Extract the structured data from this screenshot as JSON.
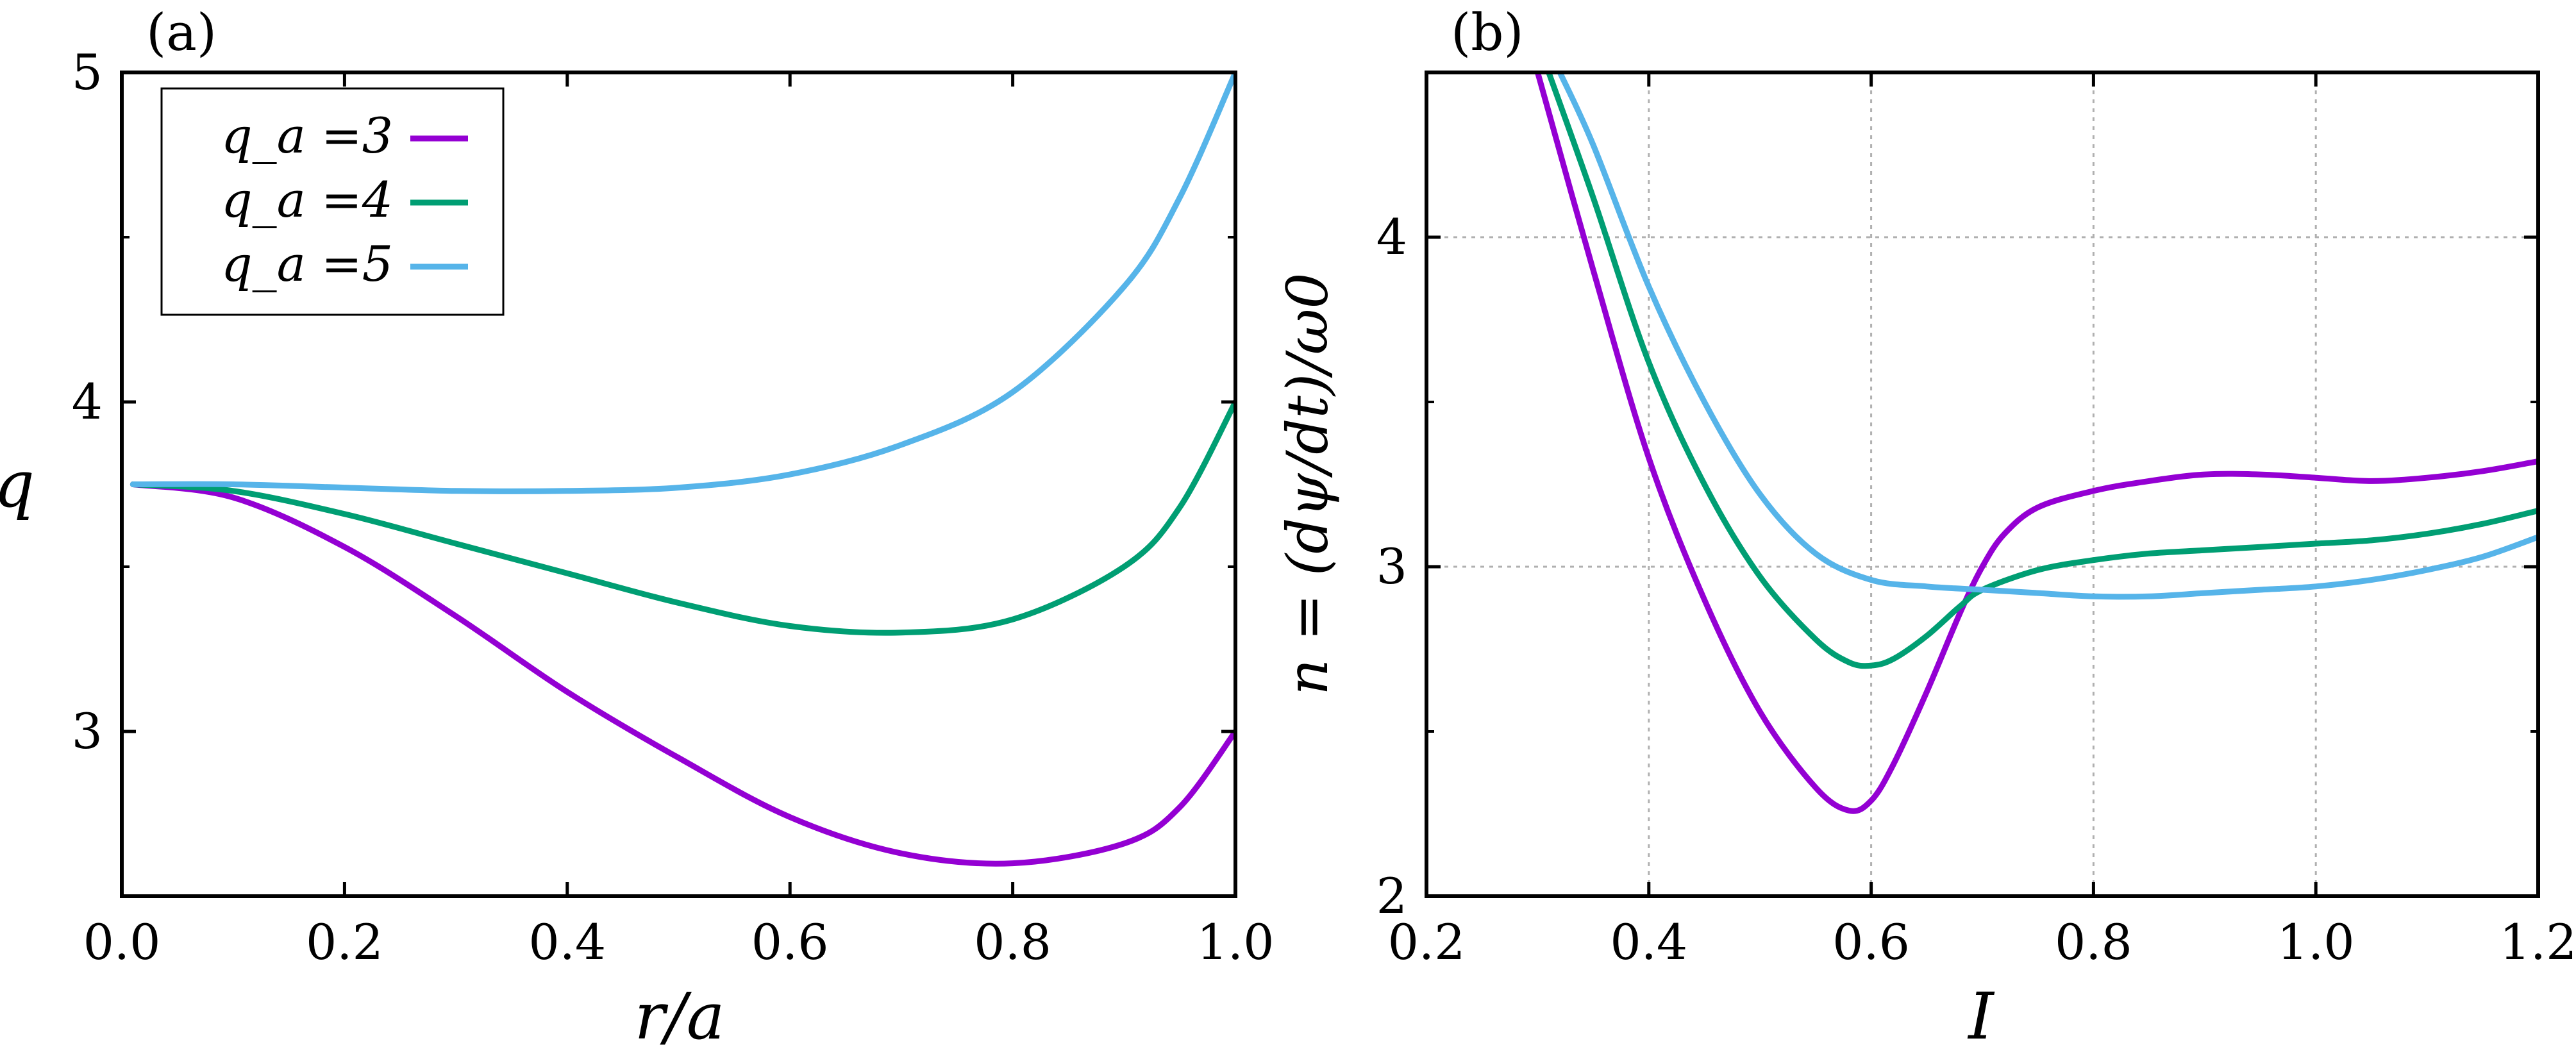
{
  "chart_data": [
    {
      "type": "line",
      "panel_label": "(a)",
      "xlabel": "r/a",
      "ylabel": "q",
      "xlim": [
        0.0,
        1.0
      ],
      "ylim": [
        2.5,
        5.0
      ],
      "grid": false,
      "x_ticks": [
        "0.0",
        "0.2",
        "0.4",
        "0.6",
        "0.8",
        "1.0"
      ],
      "x_tick_values": [
        0.0,
        0.2,
        0.4,
        0.6,
        0.8,
        1.0
      ],
      "y_ticks": [
        "3",
        "4",
        "5"
      ],
      "y_tick_values": [
        3,
        4,
        5
      ],
      "legend": {
        "placement": "top-left",
        "entries": [
          "q_a =3",
          "q_a =4",
          "q_a =5"
        ]
      },
      "series": [
        {
          "name": "q_a =3",
          "color": "#9400D3",
          "x": [
            0.01,
            0.1,
            0.2,
            0.3,
            0.4,
            0.5,
            0.6,
            0.7,
            0.8,
            0.9,
            0.95,
            1.0
          ],
          "y": [
            3.75,
            3.71,
            3.56,
            3.35,
            3.12,
            2.92,
            2.74,
            2.63,
            2.6,
            2.66,
            2.77,
            3.0
          ]
        },
        {
          "name": "q_a =4",
          "color": "#009E73",
          "x": [
            0.01,
            0.1,
            0.2,
            0.3,
            0.4,
            0.5,
            0.6,
            0.7,
            0.8,
            0.9,
            0.95,
            1.0
          ],
          "y": [
            3.75,
            3.73,
            3.66,
            3.57,
            3.48,
            3.39,
            3.32,
            3.3,
            3.34,
            3.5,
            3.68,
            4.0
          ]
        },
        {
          "name": "q_a =5",
          "color": "#56B4E9",
          "x": [
            0.01,
            0.1,
            0.2,
            0.3,
            0.4,
            0.5,
            0.6,
            0.7,
            0.8,
            0.9,
            0.95,
            1.0
          ],
          "y": [
            3.75,
            3.75,
            3.74,
            3.73,
            3.73,
            3.74,
            3.78,
            3.87,
            4.03,
            4.35,
            4.62,
            5.0
          ]
        }
      ]
    },
    {
      "type": "line",
      "panel_label": "(b)",
      "xlabel": "I",
      "ylabel": "n = (dψ/dt)/ω0",
      "xlim": [
        0.2,
        1.2
      ],
      "ylim": [
        2.0,
        4.5
      ],
      "grid": true,
      "x_ticks": [
        "0.2",
        "0.4",
        "0.6",
        "0.8",
        "1.0",
        "1.2"
      ],
      "x_tick_values": [
        0.2,
        0.4,
        0.6,
        0.8,
        1.0,
        1.2
      ],
      "y_ticks": [
        "2",
        "3",
        "4"
      ],
      "y_tick_values": [
        2,
        3,
        4
      ],
      "series": [
        {
          "name": "q_a =3",
          "color": "#9400D3",
          "x": [
            0.3,
            0.35,
            0.4,
            0.45,
            0.5,
            0.55,
            0.58,
            0.6,
            0.62,
            0.65,
            0.68,
            0.7,
            0.72,
            0.75,
            0.8,
            0.85,
            0.9,
            0.95,
            1.0,
            1.05,
            1.1,
            1.15,
            1.2
          ],
          "y": [
            4.5,
            3.9,
            3.33,
            2.9,
            2.56,
            2.33,
            2.26,
            2.29,
            2.4,
            2.62,
            2.86,
            3.0,
            3.1,
            3.18,
            3.23,
            3.26,
            3.28,
            3.28,
            3.27,
            3.26,
            3.27,
            3.29,
            3.32
          ]
        },
        {
          "name": "q_a =4",
          "color": "#009E73",
          "x": [
            0.31,
            0.35,
            0.4,
            0.45,
            0.5,
            0.55,
            0.58,
            0.6,
            0.62,
            0.65,
            0.68,
            0.7,
            0.75,
            0.8,
            0.85,
            0.9,
            0.95,
            1.0,
            1.05,
            1.1,
            1.15,
            1.2
          ],
          "y": [
            4.5,
            4.12,
            3.62,
            3.25,
            2.97,
            2.78,
            2.71,
            2.7,
            2.72,
            2.79,
            2.88,
            2.93,
            2.99,
            3.02,
            3.04,
            3.05,
            3.06,
            3.07,
            3.08,
            3.1,
            3.13,
            3.17
          ]
        },
        {
          "name": "q_a =5",
          "color": "#56B4E9",
          "x": [
            0.32,
            0.35,
            0.4,
            0.45,
            0.5,
            0.55,
            0.6,
            0.65,
            0.7,
            0.75,
            0.8,
            0.85,
            0.9,
            0.95,
            1.0,
            1.05,
            1.1,
            1.15,
            1.2
          ],
          "y": [
            4.5,
            4.28,
            3.85,
            3.5,
            3.22,
            3.04,
            2.96,
            2.94,
            2.93,
            2.92,
            2.91,
            2.91,
            2.92,
            2.93,
            2.94,
            2.96,
            2.99,
            3.03,
            3.09
          ]
        }
      ]
    }
  ]
}
